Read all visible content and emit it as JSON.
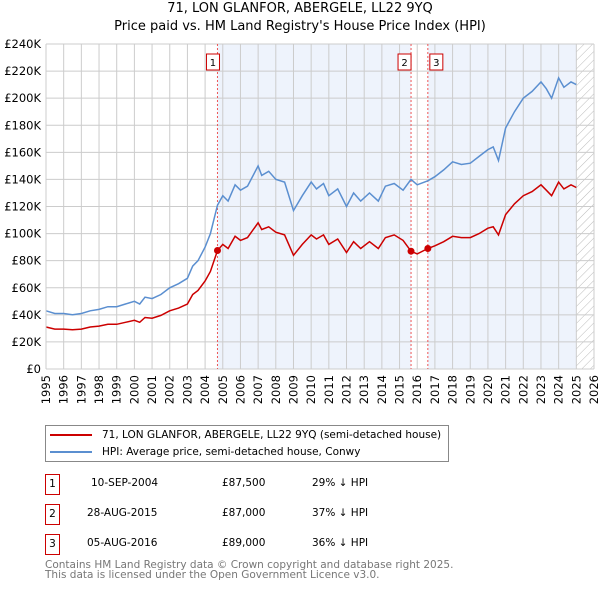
{
  "title": "71, LON GLANFOR, ABERGELE, LL22 9YQ",
  "subtitle": "Price paid vs. HM Land Registry's House Price Index (HPI)",
  "colors": {
    "property": "#cc0000",
    "hpi": "#5b8fd0",
    "shade": "#eef3fc"
  },
  "chart_data": {
    "type": "line",
    "title": "71, LON GLANFOR, ABERGELE, LL22 9YQ",
    "subtitle": "Price paid vs. HM Land Registry's House Price Index (HPI)",
    "xlim": [
      1995,
      2026
    ],
    "ylim": [
      0,
      240000
    ],
    "grid": true,
    "y_ticks": [
      {
        "v": 0,
        "label": "£0"
      },
      {
        "v": 20000,
        "label": "£20K"
      },
      {
        "v": 40000,
        "label": "£40K"
      },
      {
        "v": 60000,
        "label": "£60K"
      },
      {
        "v": 80000,
        "label": "£80K"
      },
      {
        "v": 100000,
        "label": "£100K"
      },
      {
        "v": 120000,
        "label": "£120K"
      },
      {
        "v": 140000,
        "label": "£140K"
      },
      {
        "v": 160000,
        "label": "£160K"
      },
      {
        "v": 180000,
        "label": "£180K"
      },
      {
        "v": 200000,
        "label": "£200K"
      },
      {
        "v": 220000,
        "label": "£220K"
      },
      {
        "v": 240000,
        "label": "£240K"
      }
    ],
    "x_ticks": [
      "1995",
      "1996",
      "1997",
      "1998",
      "1999",
      "2000",
      "2001",
      "2002",
      "2003",
      "2004",
      "2005",
      "2006",
      "2007",
      "2008",
      "2009",
      "2010",
      "2011",
      "2012",
      "2013",
      "2014",
      "2015",
      "2016",
      "2017",
      "2018",
      "2019",
      "2020",
      "2021",
      "2022",
      "2023",
      "2024",
      "2025",
      "2026"
    ],
    "x": [
      1995,
      1995.5,
      1996,
      1996.5,
      1997,
      1997.5,
      1998,
      1998.5,
      1999,
      1999.5,
      2000,
      2000.3,
      2000.6,
      2001,
      2001.5,
      2002,
      2002.5,
      2003,
      2003.3,
      2003.6,
      2004,
      2004.3,
      2004.7,
      2005,
      2005.3,
      2005.7,
      2006,
      2006.4,
      2007,
      2007.2,
      2007.6,
      2008,
      2008.5,
      2009,
      2009.5,
      2010,
      2010.3,
      2010.7,
      2011,
      2011.5,
      2012,
      2012.4,
      2012.8,
      2013.3,
      2013.8,
      2014.2,
      2014.7,
      2015.2,
      2015.65,
      2016,
      2016.6,
      2017,
      2017.5,
      2018,
      2018.5,
      2019,
      2019.5,
      2020,
      2020.3,
      2020.6,
      2021,
      2021.5,
      2022,
      2022.5,
      2023,
      2023.3,
      2023.6,
      2024,
      2024.3,
      2024.7,
      2025
    ],
    "series": [
      {
        "name": "71, LON GLANFOR, ABERGELE, LL22 9YQ (semi-detached house)",
        "color": "#cc0000",
        "values": [
          31000,
          29500,
          29500,
          29000,
          29500,
          31000,
          31700,
          33000,
          33000,
          34500,
          36000,
          34500,
          38000,
          37500,
          39600,
          43000,
          45000,
          48000,
          55000,
          58000,
          65000,
          72000,
          87500,
          92000,
          89000,
          98000,
          95000,
          97000,
          108000,
          103000,
          105000,
          101000,
          99000,
          84000,
          92000,
          99000,
          96000,
          99000,
          92000,
          96000,
          86000,
          94000,
          89000,
          94000,
          89000,
          97000,
          99000,
          95000,
          87000,
          85000,
          89000,
          91000,
          94000,
          98000,
          97000,
          97000,
          100000,
          104000,
          105000,
          99000,
          114000,
          122000,
          128000,
          131000,
          136000,
          132000,
          128000,
          138000,
          133000,
          136000,
          134000
        ]
      },
      {
        "name": "HPI: Average price, semi-detached house, Conwy",
        "color": "#5b8fd0",
        "values": [
          43000,
          41000,
          41000,
          40000,
          41000,
          43000,
          44000,
          46000,
          46000,
          48000,
          50000,
          48000,
          53000,
          52000,
          55000,
          60000,
          63000,
          67000,
          76000,
          80000,
          90000,
          100000,
          121000,
          128000,
          124000,
          136000,
          132000,
          135000,
          150000,
          143000,
          146000,
          140000,
          138000,
          117000,
          128000,
          138000,
          133000,
          137000,
          128000,
          133000,
          120000,
          130000,
          124000,
          130000,
          124000,
          135000,
          137000,
          132000,
          140000,
          136000,
          139000,
          142000,
          147000,
          153000,
          151000,
          152000,
          157000,
          162000,
          164000,
          154000,
          178000,
          190000,
          200000,
          205000,
          212000,
          207000,
          200000,
          215000,
          208000,
          212000,
          210000
        ]
      }
    ],
    "sales": [
      {
        "id": "1",
        "x": 2004.7,
        "price": 87500
      },
      {
        "id": "2",
        "x": 2015.65,
        "price": 87000
      },
      {
        "id": "3",
        "x": 2016.6,
        "price": 89000
      }
    ],
    "forecast_start": 2025.0
  },
  "legend": {
    "property": "71, LON GLANFOR, ABERGELE, LL22 9YQ (semi-detached house)",
    "hpi": "HPI: Average price, semi-detached house, Conwy"
  },
  "transactions": [
    {
      "id": "1",
      "date": "10-SEP-2004",
      "price": "£87,500",
      "hpi": "29% ↓ HPI"
    },
    {
      "id": "2",
      "date": "28-AUG-2015",
      "price": "£87,000",
      "hpi": "37% ↓ HPI"
    },
    {
      "id": "3",
      "date": "05-AUG-2016",
      "price": "£89,000",
      "hpi": "36% ↓ HPI"
    }
  ],
  "footer": {
    "line1": "Contains HM Land Registry data © Crown copyright and database right 2025.",
    "line2": "This data is licensed under the Open Government Licence v3.0."
  }
}
